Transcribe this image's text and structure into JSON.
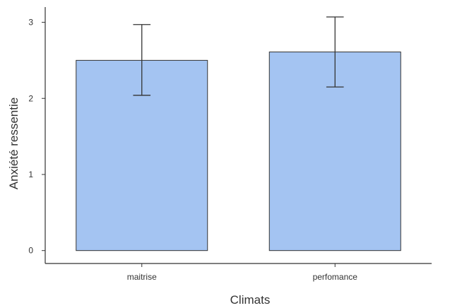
{
  "chart_data": {
    "type": "bar",
    "categories": [
      "maitrise",
      "perfomance"
    ],
    "values": [
      2.5,
      2.61
    ],
    "error_bars": [
      {
        "lower": 2.04,
        "upper": 2.97
      },
      {
        "lower": 2.15,
        "upper": 3.07
      }
    ],
    "xlabel": "Climats",
    "ylabel": "Anxiété ressentie",
    "yticks": [
      0,
      1,
      2,
      3
    ],
    "ylim": [
      -0.17,
      3.2
    ],
    "grid": false,
    "colors": {
      "bar_fill": "#a4c4f2",
      "bar_stroke": "#333333",
      "axis": "#333333",
      "text": "#333333"
    }
  }
}
